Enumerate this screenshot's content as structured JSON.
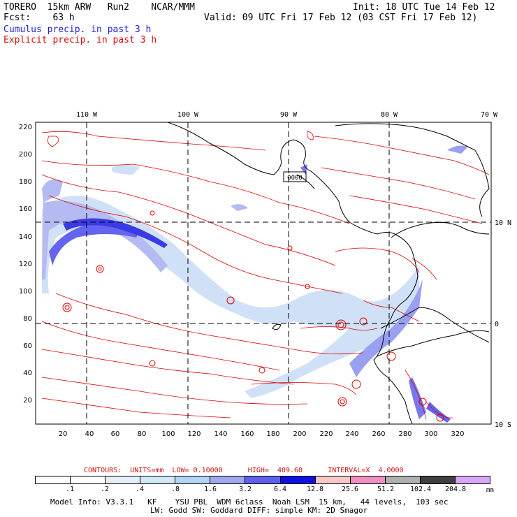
{
  "header": {
    "left_line1": "TORERO  15km ARW   Run2    NCAR/MMM",
    "left_line2": "Fcst:    63 h",
    "right_line1": "Init: 18 UTC Tue 14 Feb 12",
    "right_line2": "Valid: 09 UTC Fri 17 Feb 12 (03 CST Fri 17 Feb 12)",
    "field1": "Cumulus precip. in past 3 h",
    "field2": "Explicit precip. in past 3 h"
  },
  "map": {
    "lon_labels": [
      "110 W",
      "100 W",
      "90 W",
      "80 W",
      "70 W"
    ],
    "lat_labels": [
      "10 N",
      "0",
      "10 S"
    ],
    "y_ticks": [
      "220",
      "200",
      "180",
      "160",
      "140",
      "120",
      "100",
      "80",
      "60",
      "40",
      "20"
    ],
    "x_ticks": [
      "20",
      "40",
      "60",
      "80",
      "100",
      "120",
      "140",
      "160",
      "180",
      "200",
      "220",
      "240",
      "260",
      "280",
      "300",
      "320"
    ],
    "station_label": "0000",
    "colors": {
      "contour": "#e00000",
      "coast": "#000000",
      "grid": "#000000"
    }
  },
  "contours_info": {
    "label": "CONTOURS:  UNITS=mm  LOW= 0.10000      HIGH=  409.60      INTERVAL=X  4.0000"
  },
  "colorbar": {
    "units": "mm",
    "labels": [
      ".1",
      ".2",
      ".4",
      ".8",
      "1.6",
      "3.2",
      "6.4",
      "12.8",
      "25.6",
      "51.2",
      "102.4",
      "204.8"
    ],
    "colors": [
      "#ffffff",
      "#ffffff",
      "#e6f0fa",
      "#d0e8f8",
      "#b4d4f4",
      "#a0a8f0",
      "#6060f0",
      "#1010e0",
      "#f8c8c8",
      "#f090c0",
      "#b0b0b0",
      "#404040",
      "#d8a8f8"
    ]
  },
  "footer": {
    "line1": "Model Info: V3.3.1   KF    YSU PBL  WDM 6class  Noah LSM  15 km,   44 levels,  103 sec",
    "line2": "LW: Godd SW: Goddard DIFF: simple KM: 2D Smagor"
  }
}
